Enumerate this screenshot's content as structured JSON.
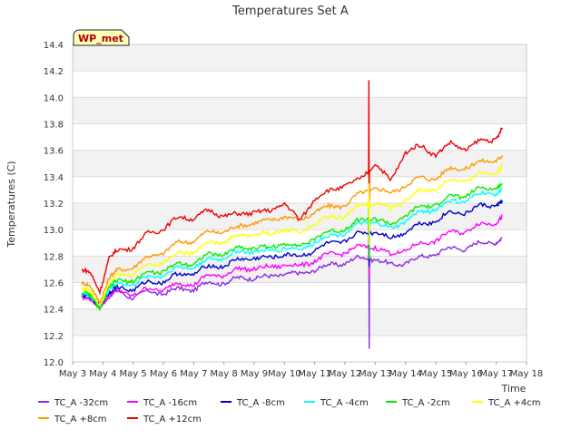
{
  "chart_data": {
    "type": "line",
    "title": "Temperatures Set A",
    "xlabel": "Time",
    "ylabel": "Temperatures (C)",
    "badge": "WP_met",
    "x_ticks": [
      "May 3",
      "May 4",
      "May 5",
      "May 6",
      "May 7",
      "May 8",
      "May 9",
      "May 10",
      "May 11",
      "May 12",
      "May 13",
      "May 14",
      "May 15",
      "May 16",
      "May 17",
      "May 18"
    ],
    "xlim": [
      0,
      15
    ],
    "y_ticks": [
      "12.0",
      "12.2",
      "12.4",
      "12.6",
      "12.8",
      "13.0",
      "13.2",
      "13.4",
      "13.6",
      "13.8",
      "14.0",
      "14.2",
      "14.4"
    ],
    "ylim": [
      12.0,
      14.4
    ],
    "grid": true,
    "legend_position": "bottom",
    "x_note": "x values are days after May 3 (0 = May 3, 14 = May 17)",
    "series": [
      {
        "name": "TC_A -32cm",
        "color": "#8a2be2",
        "x": [
          0.3,
          0.6,
          0.9,
          1.2,
          1.5,
          2.0,
          2.5,
          3.0,
          3.5,
          4.0,
          4.5,
          5.0,
          5.5,
          6.0,
          6.5,
          7.0,
          7.5,
          8.0,
          8.5,
          9.0,
          9.5,
          10.0,
          10.5,
          11.0,
          11.5,
          12.0,
          12.5,
          13.0,
          13.5,
          14.0,
          14.2
        ],
        "y": [
          12.47,
          12.46,
          12.44,
          12.49,
          12.52,
          12.5,
          12.52,
          12.53,
          12.54,
          12.56,
          12.59,
          12.61,
          12.62,
          12.65,
          12.63,
          12.68,
          12.65,
          12.71,
          12.72,
          12.76,
          12.78,
          12.79,
          12.72,
          12.76,
          12.78,
          12.83,
          12.85,
          12.87,
          12.89,
          12.92,
          12.94
        ]
      },
      {
        "name": "TC_A +8cm",
        "color": "#ff9900",
        "x": [
          0.3,
          0.6,
          0.9,
          1.2,
          1.5,
          2.0,
          2.5,
          3.0,
          3.5,
          4.0,
          4.5,
          5.0,
          5.5,
          6.0,
          6.5,
          7.0,
          7.5,
          8.0,
          8.5,
          9.0,
          9.5,
          10.0,
          10.5,
          11.0,
          11.5,
          12.0,
          12.5,
          13.0,
          13.5,
          14.0,
          14.2
        ],
        "y": [
          12.58,
          12.56,
          12.47,
          12.63,
          12.68,
          12.73,
          12.78,
          12.84,
          12.89,
          12.93,
          12.97,
          13.0,
          13.01,
          13.07,
          13.05,
          13.12,
          13.05,
          13.15,
          13.16,
          13.2,
          13.26,
          13.33,
          13.26,
          13.35,
          13.38,
          13.4,
          13.45,
          13.48,
          13.5,
          13.54,
          13.56
        ]
      },
      {
        "name": "TC_A -16cm",
        "color": "#ff00ff",
        "x": [
          0.3,
          0.6,
          0.9,
          1.2,
          1.5,
          2.0,
          2.5,
          3.0,
          3.5,
          4.0,
          4.5,
          5.0,
          5.5,
          6.0,
          6.5,
          7.0,
          7.5,
          8.0,
          8.5,
          9.0,
          9.5,
          10.0,
          10.5,
          11.0,
          11.5,
          12.0,
          12.5,
          13.0,
          13.5,
          14.0,
          14.2
        ],
        "y": [
          12.48,
          12.46,
          12.45,
          12.5,
          12.53,
          12.52,
          12.54,
          12.56,
          12.58,
          12.6,
          12.64,
          12.67,
          12.69,
          12.72,
          12.7,
          12.75,
          12.71,
          12.78,
          12.8,
          12.84,
          12.86,
          12.88,
          12.8,
          12.86,
          12.88,
          12.93,
          12.97,
          13.0,
          13.03,
          13.07,
          13.1
        ]
      },
      {
        "name": "TC_A +12cm",
        "color": "#ee0000",
        "x": [
          0.3,
          0.6,
          0.9,
          1.2,
          1.5,
          2.0,
          2.5,
          3.0,
          3.5,
          4.0,
          4.5,
          5.0,
          5.5,
          6.0,
          6.5,
          7.0,
          7.5,
          8.0,
          8.5,
          9.0,
          9.5,
          10.0,
          10.5,
          11.0,
          11.5,
          12.0,
          12.5,
          13.0,
          13.5,
          14.0,
          14.2
        ],
        "y": [
          12.68,
          12.66,
          12.55,
          12.78,
          12.83,
          12.88,
          12.96,
          13.02,
          13.08,
          13.1,
          13.13,
          13.12,
          13.1,
          13.15,
          13.12,
          13.22,
          13.05,
          13.25,
          13.28,
          13.35,
          13.36,
          13.52,
          13.35,
          13.6,
          13.62,
          13.58,
          13.64,
          13.62,
          13.66,
          13.7,
          13.77
        ]
      },
      {
        "name": "TC_A -8cm",
        "color": "#0000cc",
        "x": [
          0.3,
          0.6,
          0.9,
          1.2,
          1.5,
          2.0,
          2.5,
          3.0,
          3.5,
          4.0,
          4.5,
          5.0,
          5.5,
          6.0,
          6.5,
          7.0,
          7.5,
          8.0,
          8.5,
          9.0,
          9.5,
          10.0,
          10.5,
          11.0,
          11.5,
          12.0,
          12.5,
          13.0,
          13.5,
          14.0,
          14.2
        ],
        "y": [
          12.49,
          12.47,
          12.45,
          12.52,
          12.55,
          12.56,
          12.59,
          12.62,
          12.65,
          12.68,
          12.71,
          12.74,
          12.76,
          12.8,
          12.77,
          12.83,
          12.78,
          12.86,
          12.88,
          12.93,
          12.96,
          13.0,
          12.92,
          13.0,
          13.03,
          13.08,
          13.12,
          13.14,
          13.17,
          13.2,
          13.22
        ]
      },
      {
        "name": "TC_A -4cm",
        "color": "#00ffff",
        "x": [
          0.3,
          0.6,
          0.9,
          1.2,
          1.5,
          2.0,
          2.5,
          3.0,
          3.5,
          4.0,
          4.5,
          5.0,
          5.5,
          6.0,
          6.5,
          7.0,
          7.5,
          8.0,
          8.5,
          9.0,
          9.5,
          10.0,
          10.5,
          11.0,
          11.5,
          12.0,
          12.5,
          13.0,
          13.5,
          14.0,
          14.2
        ],
        "y": [
          12.5,
          12.48,
          12.45,
          12.54,
          12.58,
          12.6,
          12.63,
          12.67,
          12.7,
          12.73,
          12.76,
          12.8,
          12.82,
          12.85,
          12.82,
          12.88,
          12.83,
          12.92,
          12.94,
          12.99,
          13.03,
          13.07,
          12.99,
          13.08,
          13.12,
          13.17,
          13.2,
          13.23,
          13.26,
          13.29,
          13.31
        ]
      },
      {
        "name": "TC_A -2cm",
        "color": "#00ee00",
        "x": [
          0.3,
          0.6,
          0.9,
          1.2,
          1.5,
          2.0,
          2.5,
          3.0,
          3.5,
          4.0,
          4.5,
          5.0,
          5.5,
          6.0,
          6.5,
          7.0,
          7.5,
          8.0,
          8.5,
          9.0,
          9.5,
          10.0,
          10.5,
          11.0,
          11.5,
          12.0,
          12.5,
          13.0,
          13.5,
          14.0,
          14.2
        ],
        "y": [
          12.51,
          12.49,
          12.42,
          12.56,
          12.6,
          12.63,
          12.66,
          12.7,
          12.73,
          12.76,
          12.8,
          12.83,
          12.85,
          12.88,
          12.85,
          12.91,
          12.86,
          12.95,
          12.97,
          13.02,
          13.06,
          13.1,
          13.02,
          13.12,
          13.16,
          13.2,
          13.24,
          13.27,
          13.3,
          13.33,
          13.35
        ]
      },
      {
        "name": "TC_A +4cm",
        "color": "#ffff00",
        "x": [
          0.3,
          0.6,
          0.9,
          1.2,
          1.5,
          2.0,
          2.5,
          3.0,
          3.5,
          4.0,
          4.5,
          5.0,
          5.5,
          6.0,
          6.5,
          7.0,
          7.5,
          8.0,
          8.5,
          9.0,
          9.5,
          10.0,
          10.5,
          11.0,
          11.5,
          12.0,
          12.5,
          13.0,
          13.5,
          14.0,
          14.2
        ],
        "y": [
          12.54,
          12.52,
          12.45,
          12.6,
          12.64,
          12.68,
          12.72,
          12.77,
          12.81,
          12.85,
          12.89,
          12.92,
          12.94,
          12.98,
          12.95,
          13.02,
          12.96,
          13.06,
          13.08,
          13.12,
          13.17,
          13.22,
          13.14,
          13.24,
          13.28,
          13.32,
          13.36,
          13.38,
          13.41,
          13.45,
          13.48
        ]
      }
    ],
    "annotations": [
      {
        "note": "sharp spike/dip across all series near May 12.8",
        "x": 9.8,
        "max": 14.13,
        "min": 12.1
      }
    ]
  }
}
